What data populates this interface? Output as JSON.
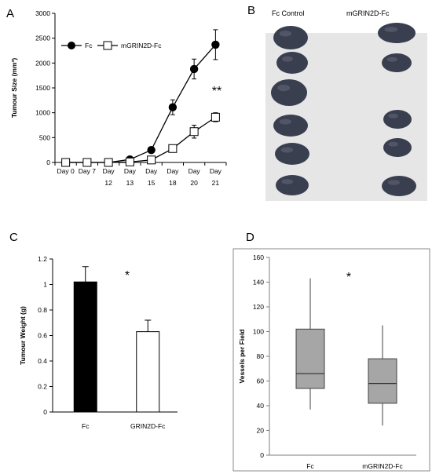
{
  "panels": {
    "a": "A",
    "b": "B",
    "c": "C",
    "d": "D"
  },
  "chart_data": [
    {
      "panel": "A",
      "type": "line",
      "categories": [
        "Day 0",
        "Day 7",
        "Day 12",
        "Day 13",
        "Day 15",
        "Day 18",
        "Day 20",
        "Day 21"
      ],
      "category_lines": [
        [
          "Day 0"
        ],
        [
          "Day 7"
        ],
        [
          "Day",
          "12"
        ],
        [
          "Day",
          "13"
        ],
        [
          "Day",
          "15"
        ],
        [
          "Day",
          "18"
        ],
        [
          "Day",
          "20"
        ],
        [
          "Day",
          "21"
        ]
      ],
      "ylabel": "Tumour Size (mm³)",
      "ylim": [
        0,
        3000
      ],
      "yticks": [
        0,
        500,
        1000,
        1500,
        2000,
        2500,
        3000
      ],
      "grid": false,
      "legend_position": "top-left",
      "series": [
        {
          "name": "Fc",
          "marker": "filled-circle",
          "color": "#000000",
          "values": [
            0,
            0,
            0,
            60,
            250,
            1110,
            1880,
            2370
          ],
          "errors": [
            0,
            0,
            0,
            20,
            40,
            150,
            200,
            300
          ]
        },
        {
          "name": "mGRIN2D-Fc",
          "marker": "open-square",
          "color": "#000000",
          "values": [
            0,
            0,
            0,
            10,
            50,
            280,
            620,
            910
          ],
          "errors": [
            0,
            0,
            0,
            10,
            20,
            60,
            130,
            90
          ]
        }
      ],
      "annotation": "**"
    },
    {
      "panel": "C",
      "type": "bar",
      "categories": [
        "Fc",
        "GRIN2D-Fc"
      ],
      "values": [
        1.02,
        0.63
      ],
      "errors": [
        0.12,
        0.09
      ],
      "colors": [
        "#000000",
        "#ffffff"
      ],
      "ylabel": "Tumour Weight (g)",
      "ylim": [
        0,
        1.2
      ],
      "yticks": [
        "0",
        "0.2",
        "0.4",
        "0.6",
        "0.8",
        "1",
        "1.2"
      ],
      "grid": false,
      "annotation": "*"
    },
    {
      "panel": "D",
      "type": "box",
      "categories": [
        "Fc",
        "mGRIN2D-Fc"
      ],
      "boxes": [
        {
          "whisker_low": 37,
          "q1": 54,
          "median": 66,
          "q3": 102,
          "whisker_high": 143
        },
        {
          "whisker_low": 24,
          "q1": 42,
          "median": 58,
          "q3": 78,
          "whisker_high": 105
        }
      ],
      "box_color": "#a6a6a6",
      "ylabel": "Vessels per Field",
      "ylim": [
        0,
        160
      ],
      "yticks": [
        0,
        20,
        40,
        60,
        80,
        100,
        120,
        140,
        160
      ],
      "grid": false,
      "annotation": "*"
    }
  ],
  "photo": {
    "panel": "B",
    "labels": [
      "Fc Control",
      "mGRIN2D-Fc"
    ],
    "background": "#e8e8e8",
    "tissue_color": "#3a3f50"
  }
}
